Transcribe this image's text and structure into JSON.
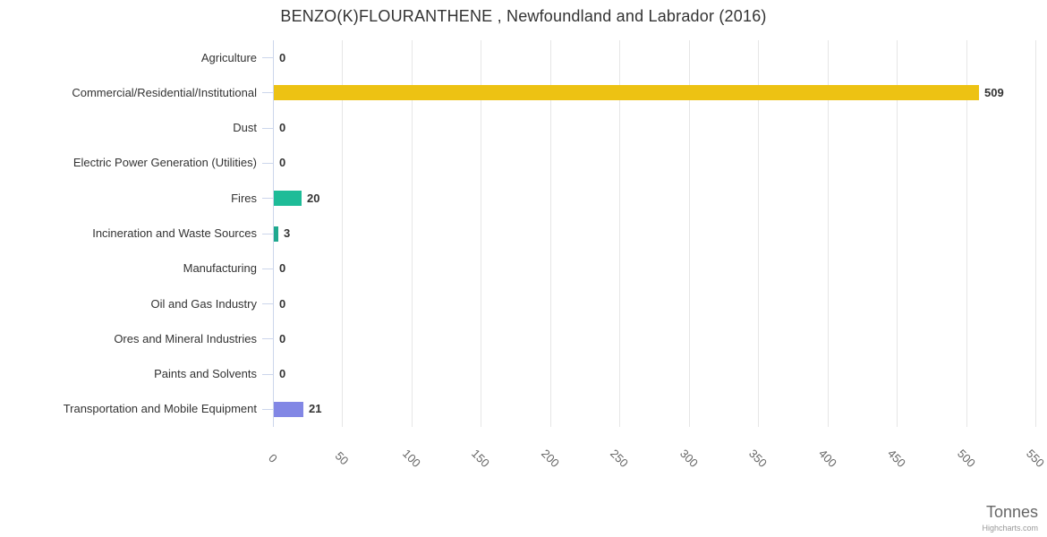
{
  "chart_data": {
    "type": "bar",
    "orientation": "horizontal",
    "title": "BENZO(K)FLOURANTHENE , Newfoundland and Labrador (2016)",
    "categories": [
      "Agriculture",
      "Commercial/Residential/Institutional",
      "Dust",
      "Electric Power Generation (Utilities)",
      "Fires",
      "Incineration and Waste Sources",
      "Manufacturing",
      "Oil and Gas Industry",
      "Ores and Mineral Industries",
      "Paints and Solvents",
      "Transportation and Mobile Equipment"
    ],
    "values": [
      0,
      509,
      0,
      0,
      20,
      3,
      0,
      0,
      0,
      0,
      21
    ],
    "data_labels": [
      "0",
      "509",
      "0",
      "0",
      "20",
      "3",
      "0",
      "0",
      "0",
      "0",
      "21"
    ],
    "point_colors": [
      null,
      "#edc213",
      null,
      null,
      "#1ebc98",
      "#1fa98f",
      null,
      null,
      null,
      null,
      "#8287e5"
    ],
    "xlabel": "Tonnes",
    "xticks": [
      0,
      50,
      100,
      150,
      200,
      250,
      300,
      350,
      400,
      450,
      500,
      550
    ],
    "xlim": [
      0,
      550
    ],
    "grid": true,
    "legend": false,
    "credits": "Highcharts.com",
    "colors": {
      "grid_line": "#e6e6e6",
      "axis_line": "#ccd6eb",
      "title_text": "#333333",
      "category_text": "#333333",
      "tick_text": "#666666",
      "data_label_text": "#333333",
      "axis_title_text": "#666666",
      "credits_text": "#999999",
      "background": "#ffffff"
    }
  }
}
